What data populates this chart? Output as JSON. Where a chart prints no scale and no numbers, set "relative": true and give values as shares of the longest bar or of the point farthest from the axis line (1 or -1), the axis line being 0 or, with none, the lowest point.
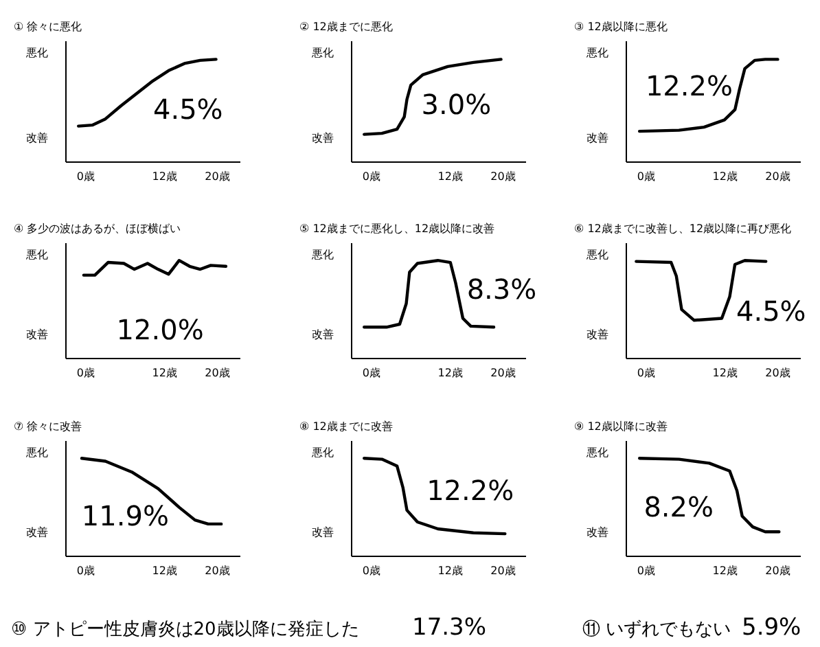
{
  "chart_data": [
    {
      "type": "line",
      "title": "① 徐々に悪化",
      "relative": true,
      "xlim": [
        -3,
        23.5
      ],
      "xticks": [
        {
          "value": 0,
          "label": "0歳"
        },
        {
          "value": 12,
          "label": "12歳"
        },
        {
          "value": 20,
          "label": "20歳"
        }
      ],
      "x": [
        -1.1,
        1.0,
        3.0,
        5.4,
        7.8,
        10.2,
        12.6,
        15.0,
        17.4,
        19.8
      ],
      "series": [
        {
          "color": "#000000",
          "values": [
            0.35,
            0.36,
            0.42,
            0.55,
            0.67,
            0.79,
            0.89,
            0.96,
            0.99,
            1
          ]
        }
      ],
      "annotations": [
        "悪化",
        "改善",
        "4.5%"
      ]
    },
    {
      "type": "line",
      "title": "② 12歳までに悪化",
      "relative": true,
      "xlim": [
        -3,
        23.5
      ],
      "xticks": [
        {
          "value": 0,
          "label": "0歳"
        },
        {
          "value": 12,
          "label": "12歳"
        },
        {
          "value": 20,
          "label": "20歳"
        }
      ],
      "x": [
        -1.1,
        1.6,
        3.9,
        5.0,
        5.4,
        6.0,
        7.8,
        11.6,
        15.5,
        19.7
      ],
      "series": [
        {
          "color": "#000000",
          "values": [
            0.27,
            0.28,
            0.32,
            0.44,
            0.61,
            0.75,
            0.85,
            0.93,
            0.97,
            1
          ]
        }
      ],
      "annotations": [
        "悪化",
        "改善",
        "3.0%"
      ]
    },
    {
      "type": "line",
      "title": "③ 12歳以降に悪化",
      "relative": true,
      "xlim": [
        -3,
        23.5
      ],
      "xticks": [
        {
          "value": 0,
          "label": "0歳"
        },
        {
          "value": 12,
          "label": "12歳"
        },
        {
          "value": 20,
          "label": "20歳"
        }
      ],
      "x": [
        -1.0,
        5.0,
        8.8,
        11.9,
        13.5,
        14.2,
        15.0,
        16.5,
        18.1,
        20
      ],
      "series": [
        {
          "color": "#000000",
          "values": [
            0.3,
            0.31,
            0.34,
            0.41,
            0.51,
            0.71,
            0.91,
            0.99,
            1,
            1
          ]
        }
      ],
      "annotations": [
        "悪化",
        "改善",
        "12.2%"
      ]
    },
    {
      "type": "line",
      "title": "④ 多少の波はあるが、ほぼ横ばい",
      "relative": true,
      "xlim": [
        -3,
        23.5
      ],
      "xticks": [
        {
          "value": 0,
          "label": "0歳"
        },
        {
          "value": 12,
          "label": "12歳"
        },
        {
          "value": 20,
          "label": "20歳"
        }
      ],
      "x": [
        -0.3,
        1.4,
        3.4,
        5.8,
        7.4,
        9.4,
        11.0,
        12.6,
        14.2,
        15.8,
        17.4,
        19.0,
        21.3
      ],
      "series": [
        {
          "color": "#000000",
          "values": [
            0.85,
            0.85,
            0.98,
            0.97,
            0.91,
            0.97,
            0.91,
            0.86,
            1,
            0.94,
            0.91,
            0.95,
            0.94
          ]
        }
      ],
      "annotations": [
        "悪化",
        "改善",
        "12.0%"
      ]
    },
    {
      "type": "line",
      "title": "⑤ 12歳までに悪化し、12歳以降に改善",
      "relative": true,
      "xlim": [
        -3,
        23.5
      ],
      "xticks": [
        {
          "value": 0,
          "label": "0歳"
        },
        {
          "value": 12,
          "label": "12歳"
        },
        {
          "value": 20,
          "label": "20歳"
        }
      ],
      "x": [
        -1.1,
        2.3,
        4.3,
        5.3,
        5.8,
        7.0,
        10.1,
        12.0,
        12.8,
        13.9,
        15.1,
        18.6
      ],
      "series": [
        {
          "color": "#000000",
          "values": [
            0.32,
            0.32,
            0.35,
            0.56,
            0.88,
            0.97,
            1,
            0.98,
            0.77,
            0.41,
            0.33,
            0.32
          ]
        }
      ],
      "annotations": [
        "悪化",
        "改善",
        "8.3%"
      ]
    },
    {
      "type": "line",
      "title": "⑥ 12歳までに改善し、12歳以降に再び悪化",
      "relative": true,
      "xlim": [
        -3,
        23.5
      ],
      "xticks": [
        {
          "value": 0,
          "label": "0歳"
        },
        {
          "value": 12,
          "label": "12歳"
        },
        {
          "value": 20,
          "label": "20歳"
        }
      ],
      "x": [
        -1.5,
        3.8,
        4.6,
        5.4,
        7.3,
        11.5,
        12.7,
        13.5,
        15.0,
        18.2
      ],
      "series": [
        {
          "color": "#000000",
          "values": [
            0.99,
            0.98,
            0.84,
            0.5,
            0.39,
            0.41,
            0.63,
            0.96,
            1,
            0.99
          ]
        }
      ],
      "annotations": [
        "悪化",
        "改善",
        "4.5%"
      ]
    },
    {
      "type": "line",
      "title": "⑦ 徐々に改善",
      "relative": true,
      "xlim": [
        -3,
        23.5
      ],
      "xticks": [
        {
          "value": 0,
          "label": "0歳"
        },
        {
          "value": 12,
          "label": "12歳"
        },
        {
          "value": 20,
          "label": "20歳"
        }
      ],
      "x": [
        -0.6,
        3.0,
        7.0,
        11.0,
        14.2,
        16.6,
        18.6,
        20.6
      ],
      "series": [
        {
          "color": "#000000",
          "values": [
            1,
            0.97,
            0.86,
            0.69,
            0.5,
            0.37,
            0.33,
            0.33
          ]
        }
      ],
      "annotations": [
        "悪化",
        "改善",
        "11.9%"
      ]
    },
    {
      "type": "line",
      "title": "⑧ 12歳までに改善",
      "relative": true,
      "xlim": [
        -3,
        23.5
      ],
      "xticks": [
        {
          "value": 0,
          "label": "0歳"
        },
        {
          "value": 12,
          "label": "12歳"
        },
        {
          "value": 20,
          "label": "20歳"
        }
      ],
      "x": [
        -1.1,
        1.6,
        3.9,
        4.8,
        5.4,
        7.0,
        10.1,
        15.5,
        20.3
      ],
      "series": [
        {
          "color": "#000000",
          "values": [
            1,
            0.99,
            0.92,
            0.7,
            0.47,
            0.35,
            0.28,
            0.24,
            0.23
          ]
        }
      ],
      "annotations": [
        "悪化",
        "改善",
        "12.2%"
      ]
    },
    {
      "type": "line",
      "title": "⑨ 12歳以降に改善",
      "relative": true,
      "xlim": [
        -3,
        23.5
      ],
      "xticks": [
        {
          "value": 0,
          "label": "0歳"
        },
        {
          "value": 12,
          "label": "12歳"
        },
        {
          "value": 20,
          "label": "20歳"
        }
      ],
      "x": [
        -1.0,
        5.0,
        9.6,
        12.7,
        13.8,
        14.6,
        16.2,
        18.1,
        20.2
      ],
      "series": [
        {
          "color": "#000000",
          "values": [
            1,
            0.99,
            0.95,
            0.87,
            0.67,
            0.41,
            0.3,
            0.25,
            0.25
          ]
        }
      ],
      "annotations": [
        "悪化",
        "改善",
        "8.2%"
      ]
    },
    {
      "type": "other",
      "annotations": [
        "⑩ アトピー性皮膚炎は20歳以降に発症した",
        "17.3%",
        "⑪ いずれでもない",
        "5.9%"
      ]
    }
  ]
}
